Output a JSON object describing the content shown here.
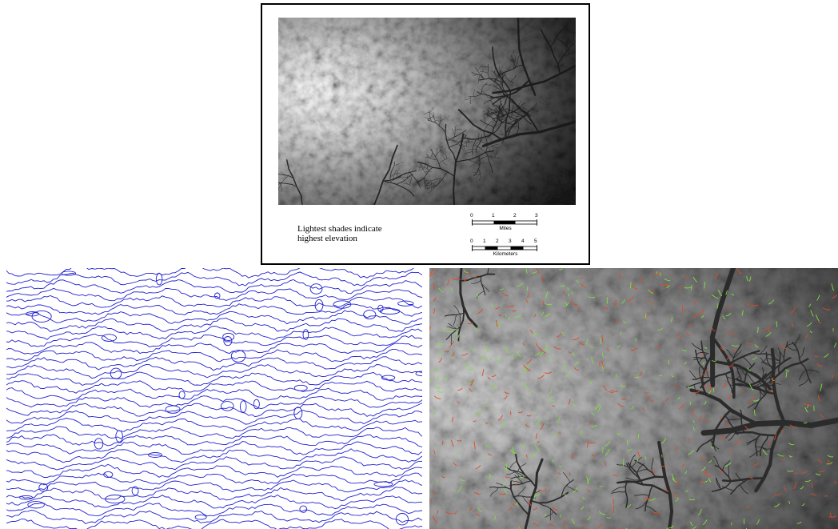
{
  "figure": {
    "caption_line1": "Lightest shades indicate",
    "caption_line2": "highest elevation",
    "scale_miles": {
      "unit": "Miles",
      "ticks": [
        "0",
        "1",
        "2",
        "3"
      ]
    },
    "scale_km": {
      "unit": "Kilometers",
      "ticks": [
        "0",
        "1",
        "2",
        "3",
        "4",
        "5"
      ]
    }
  },
  "colors": {
    "contour_line": "#2020d0",
    "overlay_green": "#7fe03c",
    "overlay_red": "#e04a24",
    "dem_low": "#1a1a1a",
    "dem_high": "#ffffff"
  }
}
